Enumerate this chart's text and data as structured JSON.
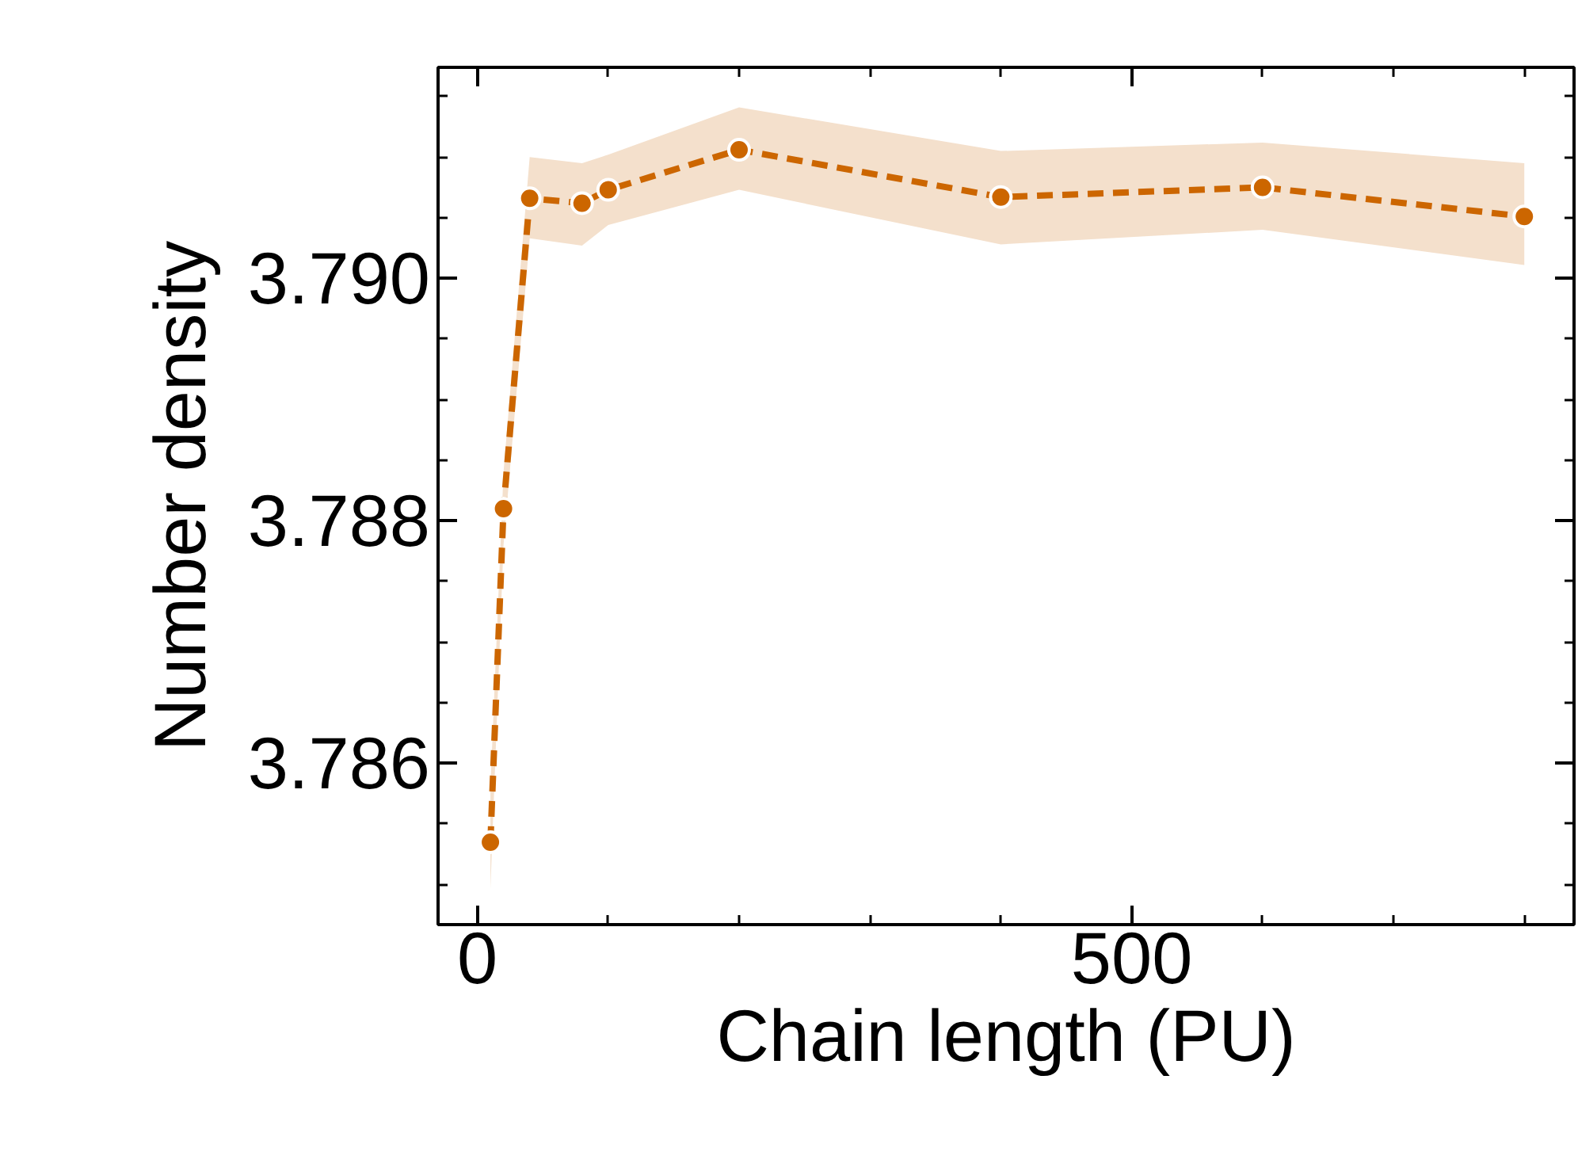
{
  "chart_data": {
    "type": "line",
    "xlabel": "Chain length (PU)",
    "ylabel": "Number density",
    "x": [
      10,
      20,
      40,
      80,
      100,
      200,
      400,
      600,
      800
    ],
    "series": [
      {
        "color": "#cc6600",
        "values": [
          3.78535,
          3.7881,
          3.79066,
          3.79062,
          3.79073,
          3.79106,
          3.79067,
          3.79075,
          3.79051
        ],
        "lower": [
          3.78496,
          3.7878,
          3.79033,
          3.79027,
          3.79044,
          3.79073,
          3.79028,
          3.7904,
          3.79011
        ],
        "upper": [
          3.7858,
          3.7884,
          3.791,
          3.79095,
          3.79102,
          3.79141,
          3.79105,
          3.79112,
          3.79095
        ]
      }
    ],
    "xlim": [
      -30,
      838
    ],
    "ylim": [
      3.78467,
      3.79174
    ],
    "xticks": [
      0,
      500
    ],
    "yticks": [
      {
        "value": 3.786,
        "label": "3.786"
      },
      {
        "value": 3.788,
        "label": "3.788"
      },
      {
        "value": 3.79,
        "label": "3.790"
      }
    ],
    "grid": false,
    "marker": "circle",
    "line_style": "dashed"
  }
}
